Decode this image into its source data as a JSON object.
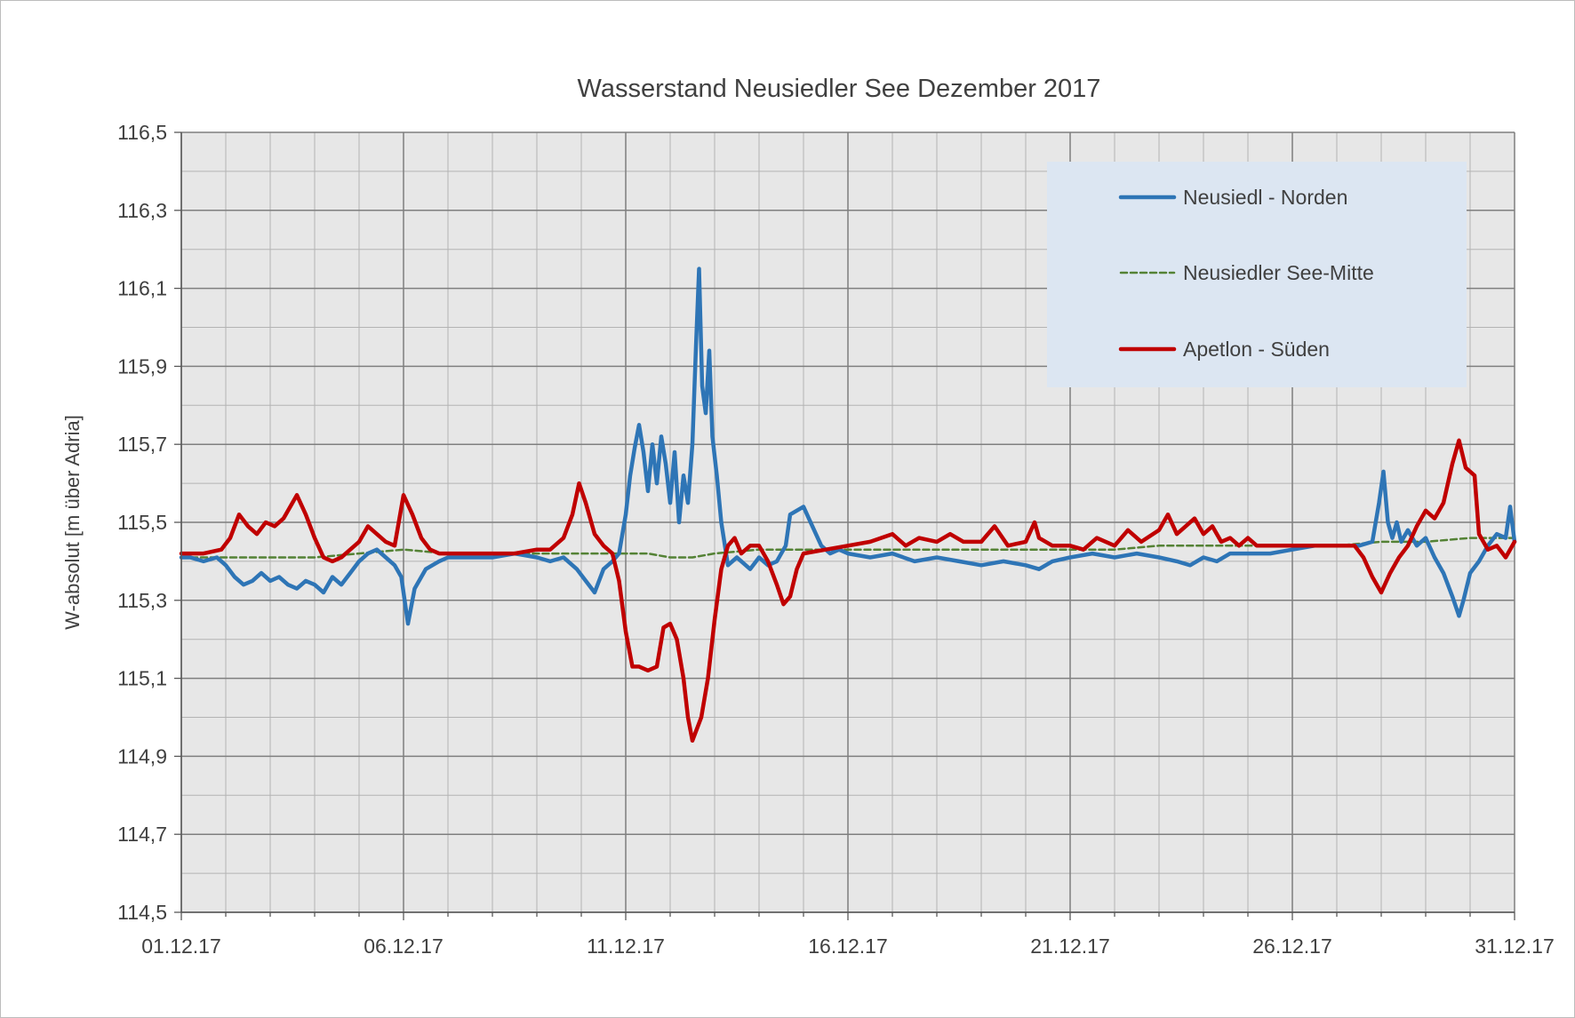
{
  "chart_data": {
    "type": "line",
    "title": "Wasserstand Neusiedler See Dezember 2017",
    "xlabel": "",
    "ylabel": "W-absolut [m über Adria]",
    "xlim": [
      1,
      31
    ],
    "ylim": [
      114.5,
      116.5
    ],
    "x_ticks": [
      {
        "x": 1,
        "label": "01.12.17"
      },
      {
        "x": 6,
        "label": "06.12.17"
      },
      {
        "x": 11,
        "label": "11.12.17"
      },
      {
        "x": 16,
        "label": "16.12.17"
      },
      {
        "x": 21,
        "label": "21.12.17"
      },
      {
        "x": 26,
        "label": "26.12.17"
      },
      {
        "x": 31,
        "label": "31.12.17"
      }
    ],
    "y_ticks": [
      "116,5",
      "116,3",
      "116,1",
      "115,9",
      "115,7",
      "115,5",
      "115,3",
      "115,1",
      "114,9",
      "114,7",
      "114,5"
    ],
    "grid": true,
    "plot_background": "#e7e7e7",
    "legend": {
      "position": "top-right",
      "background": "#dce6f2"
    },
    "series": [
      {
        "name": "Neusiedl - Norden",
        "color": "#2e75b6",
        "style": "solid",
        "points": [
          [
            1.0,
            115.41
          ],
          [
            1.2,
            115.41
          ],
          [
            1.5,
            115.4
          ],
          [
            1.8,
            115.41
          ],
          [
            2.0,
            115.39
          ],
          [
            2.2,
            115.36
          ],
          [
            2.4,
            115.34
          ],
          [
            2.6,
            115.35
          ],
          [
            2.8,
            115.37
          ],
          [
            3.0,
            115.35
          ],
          [
            3.2,
            115.36
          ],
          [
            3.4,
            115.34
          ],
          [
            3.6,
            115.33
          ],
          [
            3.8,
            115.35
          ],
          [
            4.0,
            115.34
          ],
          [
            4.2,
            115.32
          ],
          [
            4.4,
            115.36
          ],
          [
            4.6,
            115.34
          ],
          [
            4.8,
            115.37
          ],
          [
            5.0,
            115.4
          ],
          [
            5.2,
            115.42
          ],
          [
            5.4,
            115.43
          ],
          [
            5.6,
            115.41
          ],
          [
            5.8,
            115.39
          ],
          [
            5.95,
            115.36
          ],
          [
            6.1,
            115.24
          ],
          [
            6.25,
            115.33
          ],
          [
            6.5,
            115.38
          ],
          [
            6.8,
            115.4
          ],
          [
            7.0,
            115.41
          ],
          [
            7.5,
            115.41
          ],
          [
            8.0,
            115.41
          ],
          [
            8.5,
            115.42
          ],
          [
            9.0,
            115.41
          ],
          [
            9.3,
            115.4
          ],
          [
            9.6,
            115.41
          ],
          [
            9.9,
            115.38
          ],
          [
            10.1,
            115.35
          ],
          [
            10.3,
            115.32
          ],
          [
            10.5,
            115.38
          ],
          [
            10.7,
            115.4
          ],
          [
            10.85,
            115.42
          ],
          [
            11.0,
            115.52
          ],
          [
            11.1,
            115.62
          ],
          [
            11.2,
            115.69
          ],
          [
            11.3,
            115.75
          ],
          [
            11.4,
            115.68
          ],
          [
            11.5,
            115.58
          ],
          [
            11.6,
            115.7
          ],
          [
            11.7,
            115.6
          ],
          [
            11.8,
            115.72
          ],
          [
            11.9,
            115.65
          ],
          [
            12.0,
            115.55
          ],
          [
            12.1,
            115.68
          ],
          [
            12.2,
            115.5
          ],
          [
            12.3,
            115.62
          ],
          [
            12.4,
            115.55
          ],
          [
            12.5,
            115.7
          ],
          [
            12.58,
            115.95
          ],
          [
            12.65,
            116.15
          ],
          [
            12.72,
            115.85
          ],
          [
            12.8,
            115.78
          ],
          [
            12.88,
            115.94
          ],
          [
            12.95,
            115.72
          ],
          [
            13.05,
            115.62
          ],
          [
            13.15,
            115.5
          ],
          [
            13.3,
            115.39
          ],
          [
            13.5,
            115.41
          ],
          [
            13.8,
            115.38
          ],
          [
            14.0,
            115.41
          ],
          [
            14.2,
            115.39
          ],
          [
            14.4,
            115.4
          ],
          [
            14.6,
            115.44
          ],
          [
            14.7,
            115.52
          ],
          [
            14.85,
            115.53
          ],
          [
            15.0,
            115.54
          ],
          [
            15.2,
            115.49
          ],
          [
            15.4,
            115.44
          ],
          [
            15.6,
            115.42
          ],
          [
            15.8,
            115.43
          ],
          [
            16.0,
            115.42
          ],
          [
            16.5,
            115.41
          ],
          [
            17.0,
            115.42
          ],
          [
            17.5,
            115.4
          ],
          [
            18.0,
            115.41
          ],
          [
            18.5,
            115.4
          ],
          [
            19.0,
            115.39
          ],
          [
            19.5,
            115.4
          ],
          [
            20.0,
            115.39
          ],
          [
            20.3,
            115.38
          ],
          [
            20.6,
            115.4
          ],
          [
            21.0,
            115.41
          ],
          [
            21.5,
            115.42
          ],
          [
            22.0,
            115.41
          ],
          [
            22.5,
            115.42
          ],
          [
            23.0,
            115.41
          ],
          [
            23.4,
            115.4
          ],
          [
            23.7,
            115.39
          ],
          [
            24.0,
            115.41
          ],
          [
            24.3,
            115.4
          ],
          [
            24.6,
            115.42
          ],
          [
            25.0,
            115.42
          ],
          [
            25.5,
            115.42
          ],
          [
            26.0,
            115.43
          ],
          [
            26.5,
            115.44
          ],
          [
            27.0,
            115.44
          ],
          [
            27.5,
            115.44
          ],
          [
            27.8,
            115.45
          ],
          [
            27.95,
            115.55
          ],
          [
            28.05,
            115.63
          ],
          [
            28.15,
            115.5
          ],
          [
            28.25,
            115.46
          ],
          [
            28.35,
            115.5
          ],
          [
            28.45,
            115.45
          ],
          [
            28.6,
            115.48
          ],
          [
            28.8,
            115.44
          ],
          [
            29.0,
            115.46
          ],
          [
            29.2,
            115.41
          ],
          [
            29.4,
            115.37
          ],
          [
            29.6,
            115.31
          ],
          [
            29.75,
            115.26
          ],
          [
            29.85,
            115.3
          ],
          [
            30.0,
            115.37
          ],
          [
            30.2,
            115.4
          ],
          [
            30.4,
            115.44
          ],
          [
            30.6,
            115.47
          ],
          [
            30.8,
            115.46
          ],
          [
            30.9,
            115.54
          ],
          [
            31.0,
            115.45
          ]
        ]
      },
      {
        "name": "Neusiedler See-Mitte",
        "color": "#548235",
        "style": "dashed",
        "points": [
          [
            1.0,
            115.41
          ],
          [
            2.0,
            115.41
          ],
          [
            3.0,
            115.41
          ],
          [
            4.0,
            115.41
          ],
          [
            5.0,
            115.42
          ],
          [
            6.0,
            115.43
          ],
          [
            7.0,
            115.42
          ],
          [
            8.0,
            115.42
          ],
          [
            9.0,
            115.42
          ],
          [
            10.0,
            115.42
          ],
          [
            11.0,
            115.42
          ],
          [
            11.5,
            115.42
          ],
          [
            12.0,
            115.41
          ],
          [
            12.5,
            115.41
          ],
          [
            13.0,
            115.42
          ],
          [
            14.0,
            115.43
          ],
          [
            15.0,
            115.43
          ],
          [
            16.0,
            115.43
          ],
          [
            17.0,
            115.43
          ],
          [
            18.0,
            115.43
          ],
          [
            19.0,
            115.43
          ],
          [
            20.0,
            115.43
          ],
          [
            21.0,
            115.43
          ],
          [
            22.0,
            115.43
          ],
          [
            23.0,
            115.44
          ],
          [
            24.0,
            115.44
          ],
          [
            25.0,
            115.44
          ],
          [
            26.0,
            115.44
          ],
          [
            27.0,
            115.44
          ],
          [
            28.0,
            115.45
          ],
          [
            29.0,
            115.45
          ],
          [
            30.0,
            115.46
          ],
          [
            31.0,
            115.46
          ]
        ]
      },
      {
        "name": "Apetlon - Süden",
        "color": "#c00000",
        "style": "solid",
        "points": [
          [
            1.0,
            115.42
          ],
          [
            1.5,
            115.42
          ],
          [
            1.9,
            115.43
          ],
          [
            2.1,
            115.46
          ],
          [
            2.3,
            115.52
          ],
          [
            2.5,
            115.49
          ],
          [
            2.7,
            115.47
          ],
          [
            2.9,
            115.5
          ],
          [
            3.1,
            115.49
          ],
          [
            3.3,
            115.51
          ],
          [
            3.5,
            115.55
          ],
          [
            3.6,
            115.57
          ],
          [
            3.8,
            115.52
          ],
          [
            4.0,
            115.46
          ],
          [
            4.2,
            115.41
          ],
          [
            4.4,
            115.4
          ],
          [
            4.6,
            115.41
          ],
          [
            4.8,
            115.43
          ],
          [
            5.0,
            115.45
          ],
          [
            5.2,
            115.49
          ],
          [
            5.4,
            115.47
          ],
          [
            5.6,
            115.45
          ],
          [
            5.8,
            115.44
          ],
          [
            6.0,
            115.57
          ],
          [
            6.2,
            115.52
          ],
          [
            6.4,
            115.46
          ],
          [
            6.6,
            115.43
          ],
          [
            6.8,
            115.42
          ],
          [
            7.0,
            115.42
          ],
          [
            7.5,
            115.42
          ],
          [
            8.0,
            115.42
          ],
          [
            8.5,
            115.42
          ],
          [
            9.0,
            115.43
          ],
          [
            9.3,
            115.43
          ],
          [
            9.6,
            115.46
          ],
          [
            9.8,
            115.52
          ],
          [
            9.95,
            115.6
          ],
          [
            10.1,
            115.55
          ],
          [
            10.3,
            115.47
          ],
          [
            10.5,
            115.44
          ],
          [
            10.7,
            115.42
          ],
          [
            10.85,
            115.35
          ],
          [
            11.0,
            115.22
          ],
          [
            11.15,
            115.13
          ],
          [
            11.3,
            115.13
          ],
          [
            11.5,
            115.12
          ],
          [
            11.7,
            115.13
          ],
          [
            11.85,
            115.23
          ],
          [
            12.0,
            115.24
          ],
          [
            12.15,
            115.2
          ],
          [
            12.3,
            115.1
          ],
          [
            12.4,
            115.0
          ],
          [
            12.5,
            114.94
          ],
          [
            12.6,
            114.97
          ],
          [
            12.7,
            115.0
          ],
          [
            12.85,
            115.1
          ],
          [
            13.0,
            115.25
          ],
          [
            13.15,
            115.38
          ],
          [
            13.3,
            115.44
          ],
          [
            13.45,
            115.46
          ],
          [
            13.6,
            115.42
          ],
          [
            13.8,
            115.44
          ],
          [
            14.0,
            115.44
          ],
          [
            14.2,
            115.4
          ],
          [
            14.4,
            115.34
          ],
          [
            14.55,
            115.29
          ],
          [
            14.7,
            115.31
          ],
          [
            14.85,
            115.38
          ],
          [
            15.0,
            115.42
          ],
          [
            15.5,
            115.43
          ],
          [
            16.0,
            115.44
          ],
          [
            16.5,
            115.45
          ],
          [
            17.0,
            115.47
          ],
          [
            17.3,
            115.44
          ],
          [
            17.6,
            115.46
          ],
          [
            18.0,
            115.45
          ],
          [
            18.3,
            115.47
          ],
          [
            18.6,
            115.45
          ],
          [
            19.0,
            115.45
          ],
          [
            19.3,
            115.49
          ],
          [
            19.6,
            115.44
          ],
          [
            20.0,
            115.45
          ],
          [
            20.2,
            115.5
          ],
          [
            20.3,
            115.46
          ],
          [
            20.6,
            115.44
          ],
          [
            21.0,
            115.44
          ],
          [
            21.3,
            115.43
          ],
          [
            21.6,
            115.46
          ],
          [
            22.0,
            115.44
          ],
          [
            22.3,
            115.48
          ],
          [
            22.6,
            115.45
          ],
          [
            23.0,
            115.48
          ],
          [
            23.2,
            115.52
          ],
          [
            23.4,
            115.47
          ],
          [
            23.6,
            115.49
          ],
          [
            23.8,
            115.51
          ],
          [
            24.0,
            115.47
          ],
          [
            24.2,
            115.49
          ],
          [
            24.4,
            115.45
          ],
          [
            24.6,
            115.46
          ],
          [
            24.8,
            115.44
          ],
          [
            25.0,
            115.46
          ],
          [
            25.2,
            115.44
          ],
          [
            25.5,
            115.44
          ],
          [
            26.0,
            115.44
          ],
          [
            26.5,
            115.44
          ],
          [
            27.0,
            115.44
          ],
          [
            27.4,
            115.44
          ],
          [
            27.6,
            115.41
          ],
          [
            27.8,
            115.36
          ],
          [
            28.0,
            115.32
          ],
          [
            28.2,
            115.37
          ],
          [
            28.4,
            115.41
          ],
          [
            28.6,
            115.44
          ],
          [
            28.8,
            115.49
          ],
          [
            29.0,
            115.53
          ],
          [
            29.2,
            115.51
          ],
          [
            29.4,
            115.55
          ],
          [
            29.6,
            115.65
          ],
          [
            29.75,
            115.71
          ],
          [
            29.9,
            115.64
          ],
          [
            30.1,
            115.62
          ],
          [
            30.2,
            115.47
          ],
          [
            30.4,
            115.43
          ],
          [
            30.6,
            115.44
          ],
          [
            30.8,
            115.41
          ],
          [
            31.0,
            115.45
          ]
        ]
      }
    ]
  }
}
